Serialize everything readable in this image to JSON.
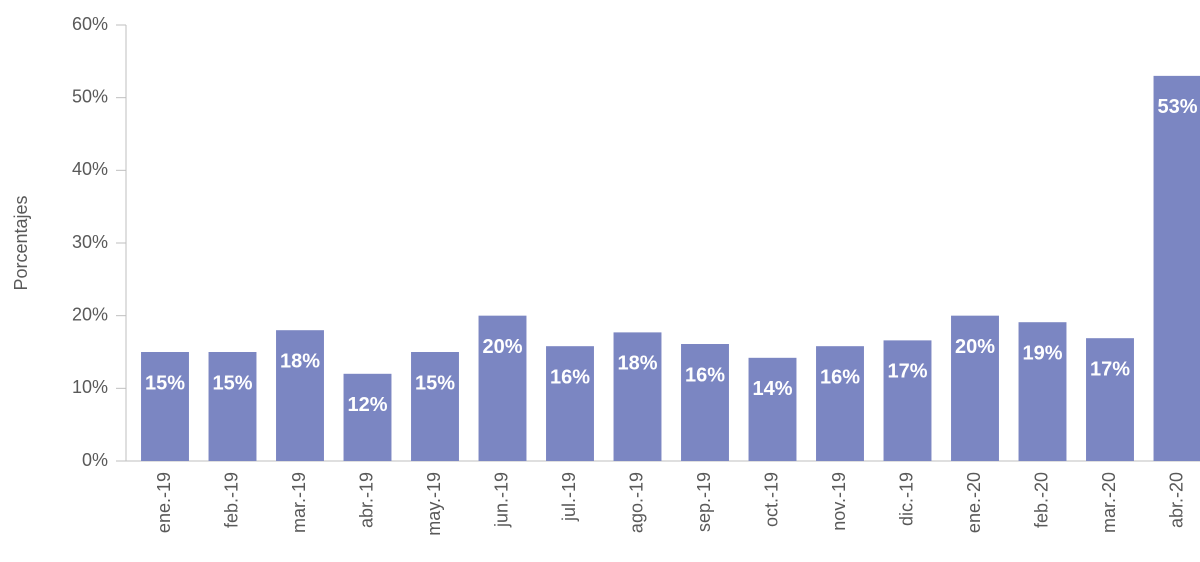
{
  "chart_data": {
    "type": "bar",
    "y_axis_label": "Porcentajes",
    "categories": [
      "ene.-19",
      "feb.-19",
      "mar.-19",
      "abr.-19",
      "may.-19",
      "jun.-19",
      "jul.-19",
      "ago.-19",
      "sep.-19",
      "oct.-19",
      "nov.-19",
      "dic.-19",
      "ene.-20",
      "feb.-20",
      "mar.-20",
      "abr.-20"
    ],
    "values": [
      15.0,
      15.0,
      18.0,
      12.0,
      15.0,
      20.0,
      15.8,
      17.7,
      16.1,
      14.2,
      15.8,
      16.6,
      20.0,
      19.1,
      16.9,
      53.0
    ],
    "value_labels": [
      "15%",
      "15%",
      "18%",
      "12%",
      "15%",
      "20%",
      "16%",
      "18%",
      "16%",
      "14%",
      "16%",
      "17%",
      "20%",
      "19%",
      "17%",
      "53%"
    ],
    "color": "#7b86c2",
    "ylim": [
      0,
      60
    ],
    "yticks": [
      {
        "value": 0,
        "label": "0%"
      },
      {
        "value": 10,
        "label": "10%"
      },
      {
        "value": 20,
        "label": "20%"
      },
      {
        "value": 30,
        "label": "30%"
      },
      {
        "value": 40,
        "label": "40%"
      },
      {
        "value": 50,
        "label": "50%"
      },
      {
        "value": 60,
        "label": "60%"
      }
    ]
  }
}
